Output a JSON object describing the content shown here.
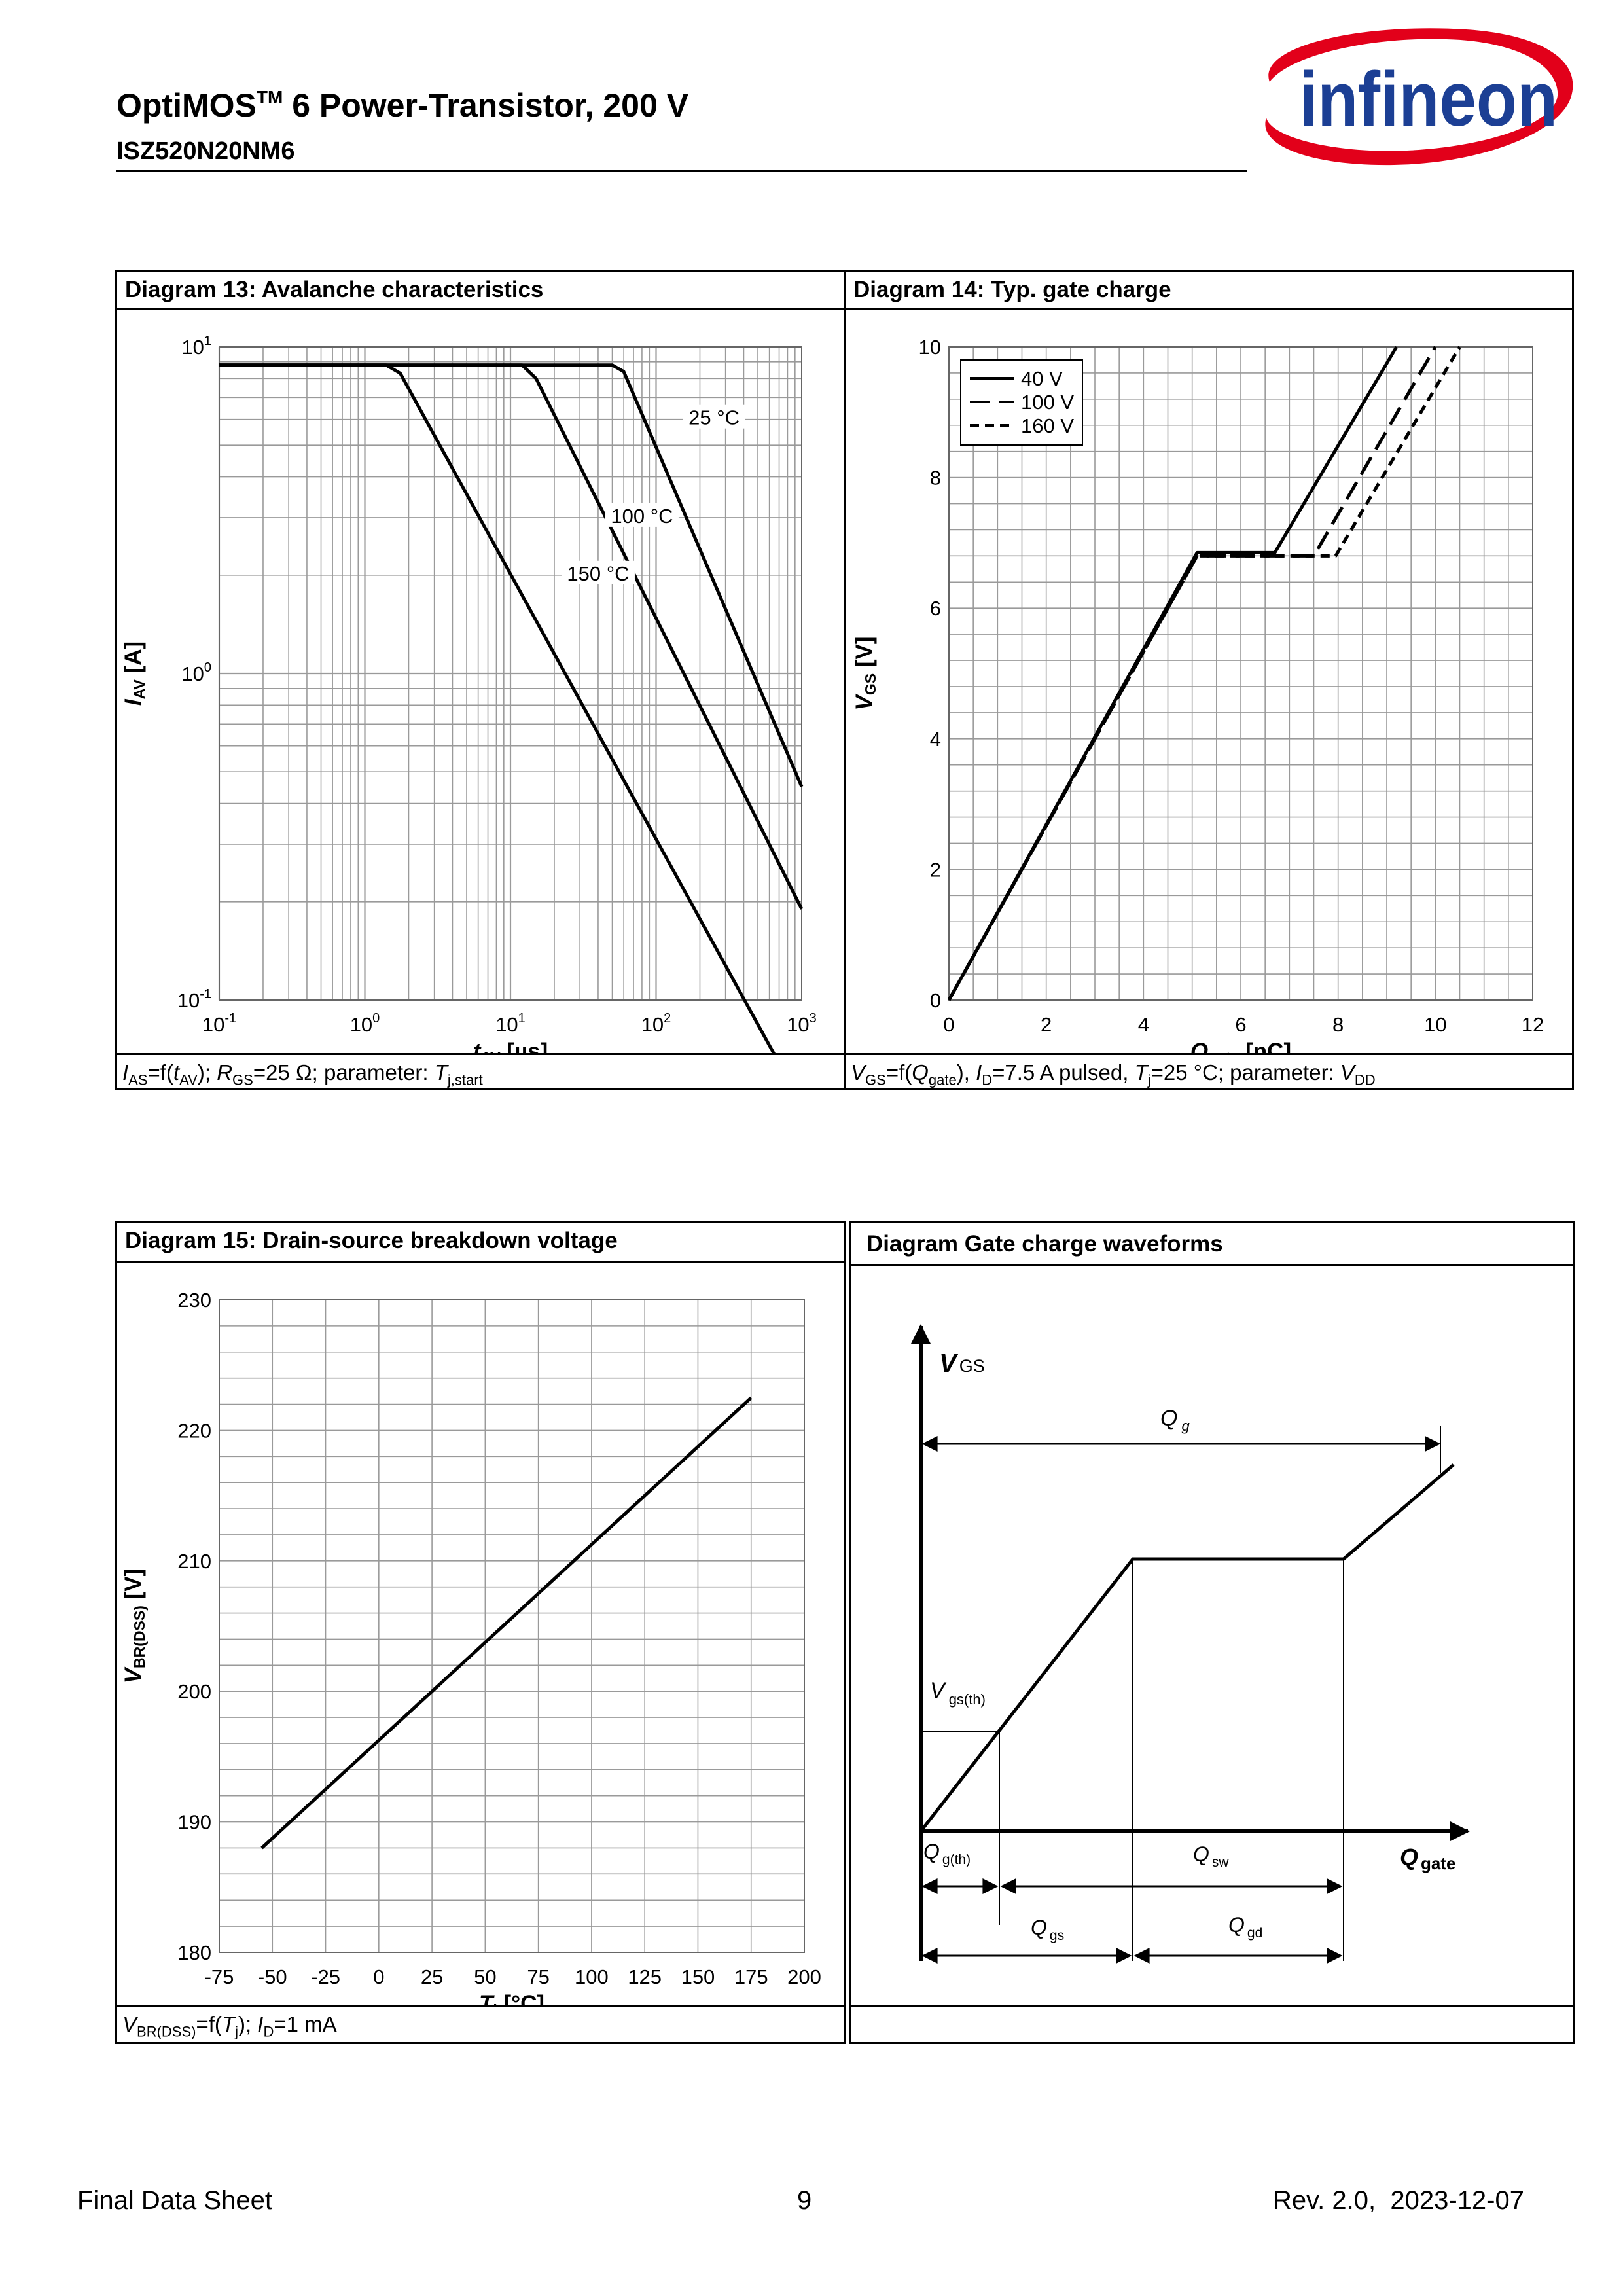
{
  "header": {
    "title_main": "OptiMOS",
    "title_sup": "TM",
    "title_rest": " 6 Power-Transistor, 200 V",
    "part_number": "ISZ520N20NM6",
    "logo_text": "infineon",
    "brand_color": "#1c3f94",
    "swoosh_color": "#e2001a"
  },
  "diagrams": {
    "d13": {
      "caption": "Diagram 13: Avalanche characteristics",
      "footnote": {
        "a": "I",
        "b": "AS",
        "c": "=f(",
        "d": "t",
        "e": "AV",
        "f": "); ",
        "g": "R",
        "h": "GS",
        "i": "=25 Ω; parameter: ",
        "j": "T",
        "k": "j,start"
      }
    },
    "d14": {
      "caption": "Diagram 14: Typ. gate charge",
      "footnote": {
        "a": "V",
        "b": "GS",
        "c": "=f(",
        "d": "Q",
        "e": "gate",
        "f": "), ",
        "g": "I",
        "h": "D",
        "i": "=7.5 A pulsed, ",
        "j": "T",
        "k": "j",
        "l": "=25 °C; parameter: ",
        "m": "V",
        "n": "DD"
      }
    },
    "d15": {
      "caption": "Diagram 15: Drain-source breakdown voltage",
      "footnote": {
        "a": "V",
        "b": "BR(DSS)",
        "c": "=f(",
        "d": "T",
        "e": "j",
        "f": "); ",
        "g": "I",
        "h": "D",
        "i": "=1 mA"
      }
    },
    "dgc": {
      "caption": "Diagram Gate charge waveforms",
      "labels": {
        "vgs": "V",
        "vgs_sub": "GS",
        "qg": "Q",
        "qg_sub": "g",
        "vgsth": "V",
        "vgsth_sub": "gs(th)",
        "qgth": "Q",
        "qgth_sub": "g(th)",
        "qsw": "Q",
        "qsw_sub": "sw",
        "qgate": "Q",
        "qgate_sub": "gate",
        "qgs": "Q",
        "qgs_sub": "gs",
        "qgd": "Q",
        "qgd_sub": "gd"
      }
    }
  },
  "chart_data": [
    {
      "id": "d13",
      "type": "line",
      "x_scale": "log",
      "y_scale": "log",
      "xlim": [
        0.1,
        1000
      ],
      "ylim": [
        0.1,
        10
      ],
      "x_ticks": [
        {
          "value": 0.1,
          "base": "10",
          "exp": "-1"
        },
        {
          "value": 1,
          "base": "10",
          "exp": "0"
        },
        {
          "value": 10,
          "base": "10",
          "exp": "1"
        },
        {
          "value": 100,
          "base": "10",
          "exp": "2"
        },
        {
          "value": 1000,
          "base": "10",
          "exp": "3"
        }
      ],
      "y_ticks": [
        {
          "value": 0.1,
          "base": "10",
          "exp": "-1"
        },
        {
          "value": 1,
          "base": "10",
          "exp": "0"
        },
        {
          "value": 10,
          "base": "10",
          "exp": "1"
        }
      ],
      "xlabel": {
        "main": "t",
        "sub": "AV",
        "rest": " [µs]"
      },
      "ylabel": {
        "main": "I",
        "sub": "AV",
        "rest": " [A]"
      },
      "grid": true,
      "series": [
        {
          "name": "25 °C",
          "x": [
            0.1,
            50,
            60,
            1000
          ],
          "y": [
            8.8,
            8.8,
            8.4,
            0.45
          ]
        },
        {
          "name": "100 °C",
          "x": [
            0.1,
            12,
            15,
            1000
          ],
          "y": [
            8.8,
            8.8,
            8.0,
            0.19
          ]
        },
        {
          "name": "150 °C",
          "x": [
            0.1,
            1.4,
            1.75,
            1000
          ],
          "y": [
            8.8,
            8.8,
            8.3,
            0.048
          ]
        }
      ],
      "annotations": [
        {
          "text": "25 °C",
          "x": 250,
          "y": 6.0
        },
        {
          "text": "100 °C",
          "x": 80,
          "y": 3.0
        },
        {
          "text": "150 °C",
          "x": 40,
          "y": 2.0
        }
      ]
    },
    {
      "id": "d14",
      "type": "line",
      "xlim": [
        0,
        12
      ],
      "ylim": [
        0,
        10
      ],
      "x_ticks": [
        0,
        2,
        4,
        6,
        8,
        10,
        12
      ],
      "y_ticks": [
        0,
        2,
        4,
        6,
        8,
        10
      ],
      "xlabel": {
        "main": "Q",
        "sub": "gate",
        "rest": " [nC]"
      },
      "ylabel": {
        "main": "V",
        "sub": "GS",
        "rest": " [V]"
      },
      "grid": true,
      "legend": "top-left",
      "series": [
        {
          "name": "40 V",
          "dash": "solid",
          "x": [
            0,
            5.1,
            6.7,
            9.2
          ],
          "y": [
            0,
            6.85,
            6.85,
            10
          ]
        },
        {
          "name": "100 V",
          "dash": "long",
          "x": [
            0,
            5.1,
            7.5,
            10.0
          ],
          "y": [
            0,
            6.8,
            6.8,
            10
          ]
        },
        {
          "name": "160 V",
          "dash": "short",
          "x": [
            0,
            5.1,
            7.95,
            10.5
          ],
          "y": [
            0,
            6.8,
            6.8,
            10
          ]
        }
      ]
    },
    {
      "id": "d15",
      "type": "line",
      "xlim": [
        -75,
        200
      ],
      "ylim": [
        180,
        230
      ],
      "x_ticks": [
        -75,
        -50,
        -25,
        0,
        25,
        50,
        75,
        100,
        125,
        150,
        175,
        200
      ],
      "y_ticks": [
        180,
        190,
        200,
        210,
        220,
        230
      ],
      "xlabel": {
        "main": "T",
        "sub": "j",
        "rest": " [°C]"
      },
      "ylabel": {
        "main": "V",
        "sub": "BR(DSS)",
        "rest": " [V]"
      },
      "grid": true,
      "series": [
        {
          "name": "",
          "x": [
            -55,
            175
          ],
          "y": [
            188,
            222.5
          ]
        }
      ]
    }
  ],
  "footer": {
    "left": "Final Data Sheet",
    "page": "9",
    "right": "Rev. 2.0,  2023-12-07"
  }
}
